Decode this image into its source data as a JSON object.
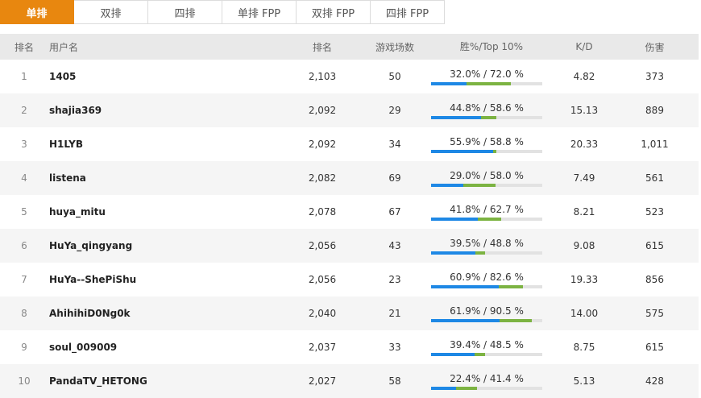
{
  "tabs": [
    {
      "label": "单排",
      "active": true
    },
    {
      "label": "双排",
      "active": false
    },
    {
      "label": "四排",
      "active": false
    },
    {
      "label": "单排 FPP",
      "active": false
    },
    {
      "label": "双排 FPP",
      "active": false
    },
    {
      "label": "四排 FPP",
      "active": false
    }
  ],
  "table": {
    "headers": {
      "rank": "排名",
      "user": "用户名",
      "rating": "排名",
      "games": "游戏场数",
      "win_top10": "胜%/Top 10%",
      "kd": "K/D",
      "damage": "伤害"
    },
    "rows": [
      {
        "rank": "1",
        "user": "1405",
        "rating": "2,103",
        "games": "50",
        "win_text": "32.0% / 72.0 %",
        "win": 32.0,
        "top10": 72.0,
        "kd": "4.82",
        "damage": "373"
      },
      {
        "rank": "2",
        "user": "shajia369",
        "rating": "2,092",
        "games": "29",
        "win_text": "44.8% / 58.6 %",
        "win": 44.8,
        "top10": 58.6,
        "kd": "15.13",
        "damage": "889"
      },
      {
        "rank": "3",
        "user": "H1LYB",
        "rating": "2,092",
        "games": "34",
        "win_text": "55.9% / 58.8 %",
        "win": 55.9,
        "top10": 58.8,
        "kd": "20.33",
        "damage": "1,011"
      },
      {
        "rank": "4",
        "user": "listena",
        "rating": "2,082",
        "games": "69",
        "win_text": "29.0% / 58.0 %",
        "win": 29.0,
        "top10": 58.0,
        "kd": "7.49",
        "damage": "561"
      },
      {
        "rank": "5",
        "user": "huya_mitu",
        "rating": "2,078",
        "games": "67",
        "win_text": "41.8% / 62.7 %",
        "win": 41.8,
        "top10": 62.7,
        "kd": "8.21",
        "damage": "523"
      },
      {
        "rank": "6",
        "user": "HuYa_qingyang",
        "rating": "2,056",
        "games": "43",
        "win_text": "39.5% / 48.8 %",
        "win": 39.5,
        "top10": 48.8,
        "kd": "9.08",
        "damage": "615"
      },
      {
        "rank": "7",
        "user": "HuYa--ShePiShu",
        "rating": "2,056",
        "games": "23",
        "win_text": "60.9% / 82.6 %",
        "win": 60.9,
        "top10": 82.6,
        "kd": "19.33",
        "damage": "856"
      },
      {
        "rank": "8",
        "user": "AhihihiD0Ng0k",
        "rating": "2,040",
        "games": "21",
        "win_text": "61.9% / 90.5 %",
        "win": 61.9,
        "top10": 90.5,
        "kd": "14.00",
        "damage": "575"
      },
      {
        "rank": "9",
        "user": "soul_009009",
        "rating": "2,037",
        "games": "33",
        "win_text": "39.4% / 48.5 %",
        "win": 39.4,
        "top10": 48.5,
        "kd": "8.75",
        "damage": "615"
      },
      {
        "rank": "10",
        "user": "PandaTV_HETONG",
        "rating": "2,027",
        "games": "58",
        "win_text": "22.4% / 41.4 %",
        "win": 22.4,
        "top10": 41.4,
        "kd": "5.13",
        "damage": "428"
      }
    ]
  },
  "colors": {
    "accent": "#e8870f",
    "win_bar": "#1e88e5",
    "top10_bar": "#7cb342"
  }
}
